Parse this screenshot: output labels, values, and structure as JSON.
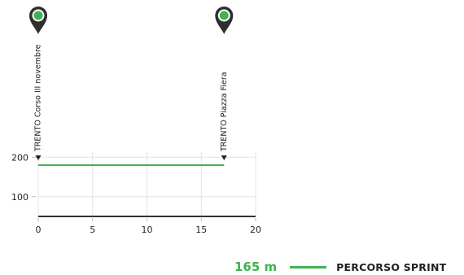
{
  "chart_data": {
    "type": "line",
    "xlim": [
      0,
      20
    ],
    "ylim": [
      50,
      215
    ],
    "x_ticks": [
      "0",
      "5",
      "10",
      "15",
      "20"
    ],
    "y_ticks": [
      "200",
      "100"
    ],
    "grid": true,
    "series": [
      {
        "name": "PERCORSO SPRINT",
        "color": "#3fb34f",
        "x": [
          0,
          17.1
        ],
        "y": [
          180,
          180
        ]
      }
    ],
    "markers": [
      {
        "label": "TRENTO Corso III novembre",
        "x": 0,
        "pin_color": "#3fb34f"
      },
      {
        "label": "TRENTO Piazza Fiera",
        "x": 17.1,
        "pin_color": "#3fb34f"
      }
    ],
    "legend": {
      "value": "165 m",
      "name": "PERCORSO SPRINT",
      "color": "#3fb34f"
    },
    "baseline_color": "#333333"
  }
}
